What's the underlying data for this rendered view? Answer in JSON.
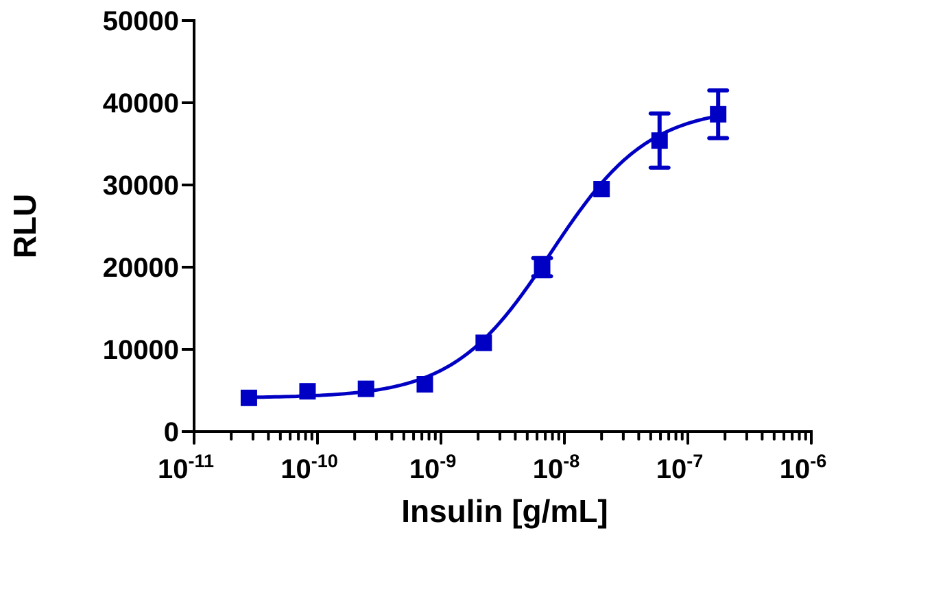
{
  "chart_data": {
    "type": "scatter",
    "xlabel": "Insulin [g/mL]",
    "ylabel": "RLU",
    "xscale": "log",
    "xlim": [
      1e-11,
      1e-06
    ],
    "ylim": [
      0,
      50000
    ],
    "grid": false,
    "x_ticks": [
      {
        "value": 1e-11,
        "base": "10",
        "exp": "-11"
      },
      {
        "value": 1e-10,
        "base": "10",
        "exp": "-10"
      },
      {
        "value": 1e-09,
        "base": "10",
        "exp": "-9"
      },
      {
        "value": 1e-08,
        "base": "10",
        "exp": "-8"
      },
      {
        "value": 1e-07,
        "base": "10",
        "exp": "-7"
      },
      {
        "value": 1e-06,
        "base": "10",
        "exp": "-6"
      }
    ],
    "y_ticks": [
      "0",
      "10000",
      "20000",
      "30000",
      "40000",
      "50000"
    ],
    "color": "#0000C4",
    "marker": "square",
    "points": [
      {
        "x": 2.78e-11,
        "y": 4100,
        "err": 0
      },
      {
        "x": 8.3e-11,
        "y": 4900,
        "err": 0
      },
      {
        "x": 2.47e-10,
        "y": 5200,
        "err": 0
      },
      {
        "x": 7.4e-10,
        "y": 5750,
        "err": 0
      },
      {
        "x": 2.22e-09,
        "y": 10800,
        "err": 0
      },
      {
        "x": 6.6e-09,
        "y": 20000,
        "err": 1100
      },
      {
        "x": 2e-08,
        "y": 29500,
        "err": 0
      },
      {
        "x": 5.9e-08,
        "y": 35400,
        "err": 3300
      },
      {
        "x": 1.76e-07,
        "y": 38600,
        "err": 2900
      }
    ],
    "fit": {
      "model": "4PL",
      "bottom": 4100,
      "top": 39500,
      "ec50": 7.8e-09,
      "hill": 1.1,
      "x_range": [
        2.78e-11,
        1.76e-07
      ]
    }
  }
}
